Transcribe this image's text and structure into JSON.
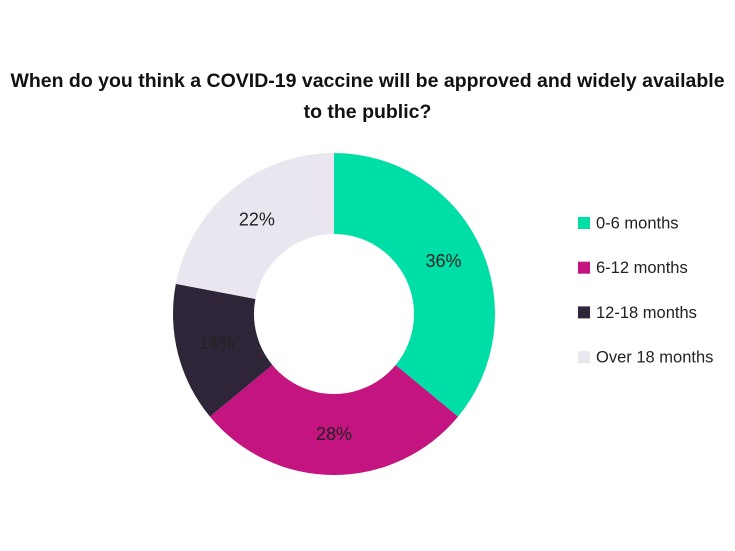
{
  "chart_data": {
    "type": "donut",
    "title": "When do you think a COVID-19 vaccine will be approved and widely available to the public?",
    "categories": [
      "0-6 months",
      "6-12 months",
      "12-18 months",
      "Over 18 months"
    ],
    "values": [
      36,
      28,
      14,
      22
    ],
    "value_labels": [
      "36%",
      "28%",
      "14%",
      "22%"
    ],
    "colors": [
      "#00dea8",
      "#c3147f",
      "#2e2638",
      "#e9e6ef"
    ],
    "legend": "right"
  }
}
